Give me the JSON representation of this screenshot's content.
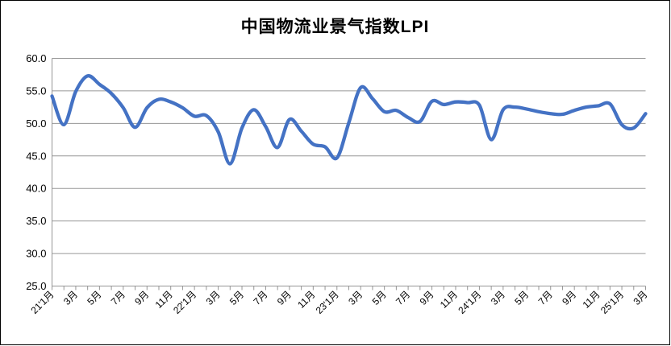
{
  "chart_data": {
    "type": "line",
    "title": "中国物流业景气指数LPI",
    "series": [
      {
        "name": "LPI",
        "x": [
          "2021-01",
          "2021-02",
          "2021-03",
          "2021-04",
          "2021-05",
          "2021-06",
          "2021-07",
          "2021-08",
          "2021-09",
          "2021-10",
          "2021-11",
          "2021-12",
          "2022-01",
          "2022-02",
          "2022-03",
          "2022-04",
          "2022-05",
          "2022-06",
          "2022-07",
          "2022-08",
          "2022-09",
          "2022-10",
          "2022-11",
          "2022-12",
          "2023-01",
          "2023-02",
          "2023-03",
          "2023-04",
          "2023-05",
          "2023-06",
          "2023-07",
          "2023-08",
          "2023-09",
          "2023-10",
          "2023-11",
          "2023-12",
          "2024-01",
          "2024-02",
          "2024-03",
          "2024-04",
          "2024-05",
          "2024-06",
          "2024-07",
          "2024-08",
          "2024-09",
          "2024-10",
          "2024-11",
          "2024-12",
          "2025-01",
          "2025-02",
          "2025-03"
        ],
        "values": [
          54.2,
          49.8,
          54.9,
          57.3,
          56.0,
          54.6,
          52.4,
          49.4,
          52.4,
          53.7,
          53.3,
          52.4,
          51.1,
          51.2,
          48.7,
          43.8,
          49.3,
          52.1,
          49.5,
          46.3,
          50.6,
          48.8,
          46.8,
          46.4,
          44.7,
          50.1,
          55.5,
          53.8,
          51.8,
          52.0,
          50.9,
          50.3,
          53.4,
          52.9,
          53.3,
          53.2,
          52.8,
          47.5,
          52.1,
          52.5,
          52.2,
          51.8,
          51.5,
          51.4,
          52.0,
          52.5,
          52.7,
          53.0,
          49.8,
          49.3,
          51.5
        ]
      }
    ],
    "x_tick_labels": [
      "21'1月",
      "3月",
      "5月",
      "7月",
      "9月",
      "11月",
      "22'1月",
      "3月",
      "5月",
      "7月",
      "9月",
      "11月",
      "23'1月",
      "3月",
      "5月",
      "7月",
      "9月",
      "11月",
      "24'1月",
      "3月",
      "5月",
      "7月",
      "9月",
      "11月",
      "25'1月",
      "3月"
    ],
    "y_tick_labels": [
      "60.0",
      "55.0",
      "50.0",
      "45.0",
      "40.0",
      "35.0",
      "30.0",
      "25.0"
    ],
    "ylim": [
      25,
      60
    ],
    "y_tick_step": 5,
    "grid": true,
    "smooth": true,
    "legend": "none",
    "colors": {
      "line": "#4472C4",
      "gridline": "#969696",
      "axis": "#969696",
      "text": "#000000",
      "border": "#000000",
      "background": "#ffffff"
    }
  }
}
